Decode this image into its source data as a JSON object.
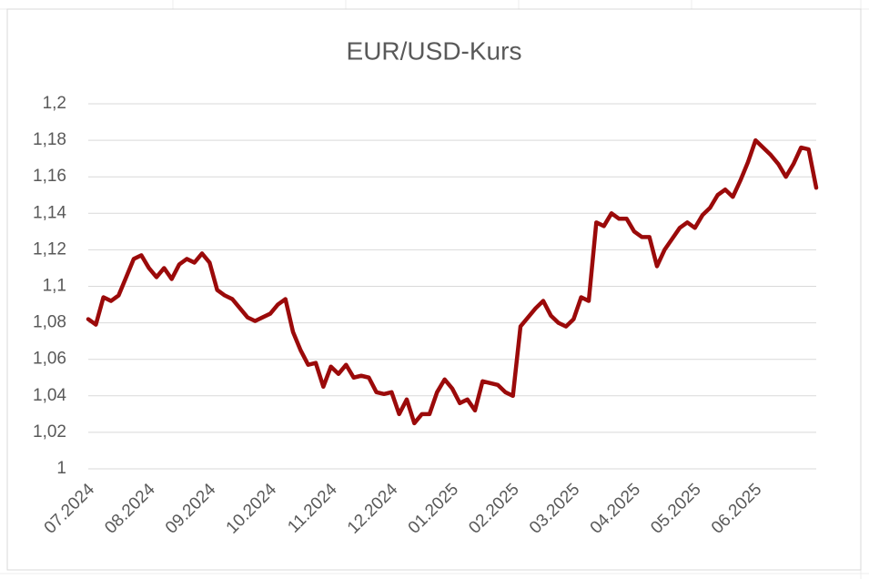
{
  "chart_data": {
    "type": "line",
    "title": "EUR/USD-Kurs",
    "categories": [
      "07.2024",
      null,
      null,
      null,
      null,
      null,
      null,
      null,
      "08.2024",
      null,
      null,
      null,
      null,
      null,
      null,
      null,
      "09.2024",
      null,
      null,
      null,
      null,
      null,
      null,
      null,
      "10.2024",
      null,
      null,
      null,
      null,
      null,
      null,
      null,
      "11.2024",
      null,
      null,
      null,
      null,
      null,
      null,
      null,
      "12.2024",
      null,
      null,
      null,
      null,
      null,
      null,
      null,
      "01.2025",
      null,
      null,
      null,
      null,
      null,
      null,
      null,
      "02.2025",
      null,
      null,
      null,
      null,
      null,
      null,
      null,
      "03.2025",
      null,
      null,
      null,
      null,
      null,
      null,
      null,
      "04.2025",
      null,
      null,
      null,
      null,
      null,
      null,
      null,
      "05.2025",
      null,
      null,
      null,
      null,
      null,
      null,
      null,
      "06.2025",
      null,
      null,
      null,
      null,
      null,
      null,
      null,
      null
    ],
    "values": [
      1.082,
      1.079,
      1.094,
      1.092,
      1.095,
      1.105,
      1.115,
      1.117,
      1.11,
      1.105,
      1.11,
      1.104,
      1.112,
      1.115,
      1.113,
      1.118,
      1.113,
      1.098,
      1.095,
      1.093,
      1.088,
      1.083,
      1.081,
      1.083,
      1.085,
      1.09,
      1.093,
      1.075,
      1.065,
      1.057,
      1.058,
      1.045,
      1.056,
      1.052,
      1.057,
      1.05,
      1.051,
      1.05,
      1.042,
      1.041,
      1.042,
      1.03,
      1.038,
      1.025,
      1.03,
      1.03,
      1.042,
      1.049,
      1.044,
      1.036,
      1.038,
      1.032,
      1.048,
      1.047,
      1.046,
      1.042,
      1.04,
      1.078,
      1.083,
      1.088,
      1.092,
      1.084,
      1.08,
      1.078,
      1.082,
      1.094,
      1.092,
      1.135,
      1.133,
      1.14,
      1.137,
      1.137,
      1.13,
      1.127,
      1.127,
      1.111,
      1.12,
      1.126,
      1.132,
      1.135,
      1.132,
      1.139,
      1.143,
      1.15,
      1.153,
      1.149,
      1.158,
      1.168,
      1.18,
      1.176,
      1.172,
      1.167,
      1.16,
      1.167,
      1.176,
      1.175,
      1.154
    ],
    "color": "#9b0a0a",
    "ylim": [
      1,
      1.2
    ],
    "yticks": [
      1,
      {
        "value": 1.02,
        "label": "1,02"
      },
      {
        "value": 1.04,
        "label": "1,04"
      },
      {
        "value": 1.06,
        "label": "1,06"
      },
      {
        "value": 1.08,
        "label": "1,08"
      },
      {
        "value": 1.1,
        "label": "1,1"
      },
      {
        "value": 1.12,
        "label": "1,12"
      },
      {
        "value": 1.14,
        "label": "1,14"
      },
      {
        "value": 1.16,
        "label": "1,16"
      },
      {
        "value": 1.18,
        "label": "1,18"
      },
      {
        "value": 1.2,
        "label": "1,2"
      }
    ],
    "grid": true
  }
}
